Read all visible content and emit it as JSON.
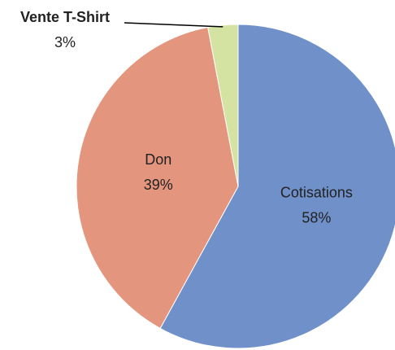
{
  "chart_data": {
    "type": "pie",
    "categories": [
      "Cotisations",
      "Don",
      "Vente T-Shirt"
    ],
    "values": [
      58,
      39,
      3
    ],
    "value_labels": [
      "58%",
      "39%",
      "3%"
    ],
    "colors": [
      "#6f90c9",
      "#e3957d",
      "#d5e3a2"
    ]
  }
}
